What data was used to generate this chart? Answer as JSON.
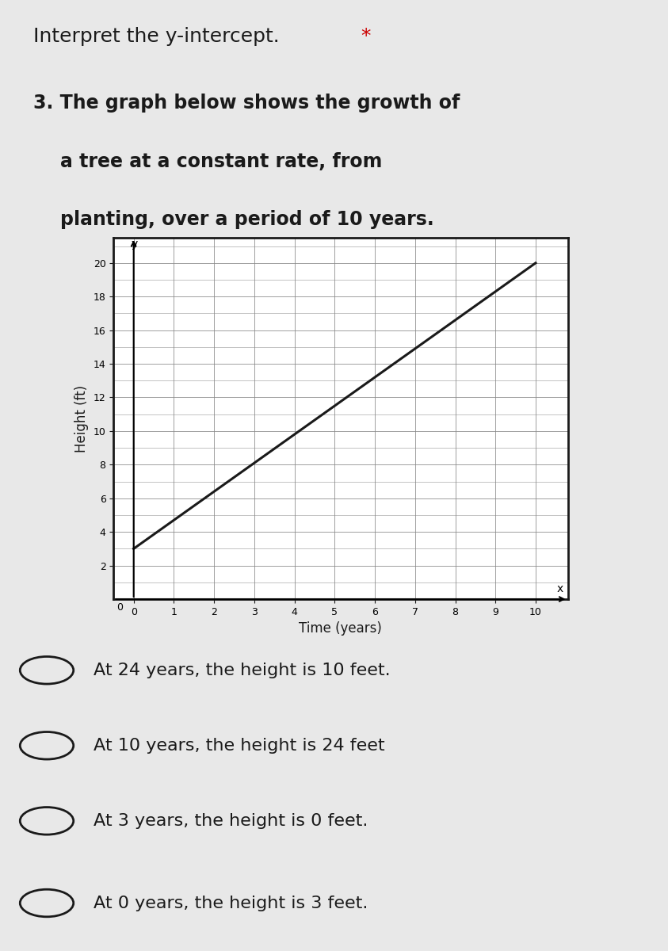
{
  "title_line1": "Interpret the y-intercept. *",
  "question_text": "3. The graph below shows the growth of\n   a tree at a constant rate, from\n   planting, over a period of 10 years.",
  "xlabel": "Time (years)",
  "ylabel": "Height (ft)",
  "x_start": 0,
  "x_end": 10,
  "y_intercept": 3,
  "slope": 1.7,
  "xlim": [
    -0.5,
    10.8
  ],
  "ylim": [
    0,
    21.5
  ],
  "x_ticks": [
    0,
    1,
    2,
    3,
    4,
    5,
    6,
    7,
    8,
    9,
    10
  ],
  "y_ticks": [
    2,
    4,
    6,
    8,
    10,
    12,
    14,
    16,
    18,
    20
  ],
  "background_color": "#e8e8e8",
  "line_color": "#1a1a1a",
  "grid_color": "#888888",
  "options": [
    "At 24 years, the height is 10 feet.",
    "At 10 years, the height is 24 feet",
    "At 3 years, the height is 0 feet.",
    "At 0 years, the height is 3 feet."
  ],
  "star_color": "#cc0000",
  "text_color": "#1a1a1a"
}
